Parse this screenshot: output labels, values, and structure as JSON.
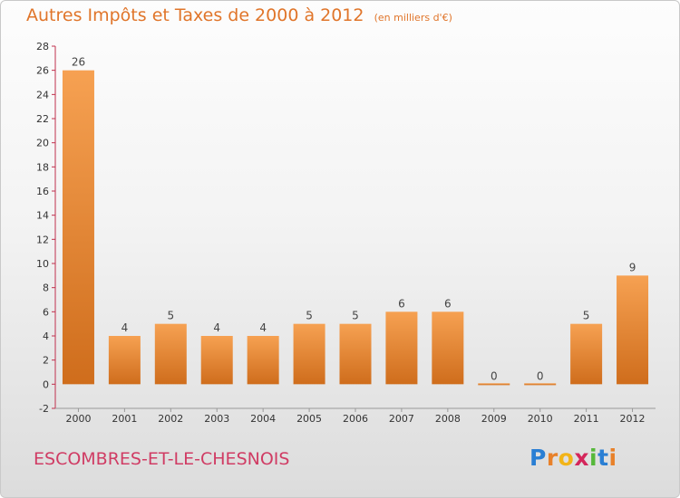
{
  "title": "Autres Impôts et Taxes de 2000 à 2012",
  "subtitle": "(en milliers d'€)",
  "commune": "ESCOMBRES-ET-LE-CHESNOIS",
  "logo": {
    "letters": [
      "P",
      "r",
      "o",
      "x",
      "i",
      "t",
      "i"
    ],
    "colors": [
      "#2a7fd4",
      "#e8812a",
      "#f2b418",
      "#d4265b",
      "#56b83a",
      "#2a7fd4",
      "#e8812a"
    ]
  },
  "chart_data": {
    "type": "bar",
    "title": "Autres Impôts et Taxes de 2000 à 2012",
    "subtitle": "(en milliers d'€)",
    "categories": [
      "2000",
      "2001",
      "2002",
      "2003",
      "2004",
      "2005",
      "2006",
      "2007",
      "2008",
      "2009",
      "2010",
      "2011",
      "2012"
    ],
    "values": [
      26,
      4,
      5,
      4,
      4,
      5,
      5,
      6,
      6,
      0,
      0,
      5,
      9
    ],
    "data_labels": [
      "26",
      "4",
      "5",
      "4",
      "4",
      "5",
      "5",
      "6",
      "6",
      "0",
      "0",
      "5",
      "9"
    ],
    "ylim": [
      -2,
      28
    ],
    "yticks": [
      -2,
      0,
      2,
      4,
      6,
      8,
      10,
      12,
      14,
      16,
      18,
      20,
      22,
      24,
      26,
      28
    ],
    "grid": false,
    "bar_color": "#e8862e",
    "axis_color": "#c0304d"
  }
}
